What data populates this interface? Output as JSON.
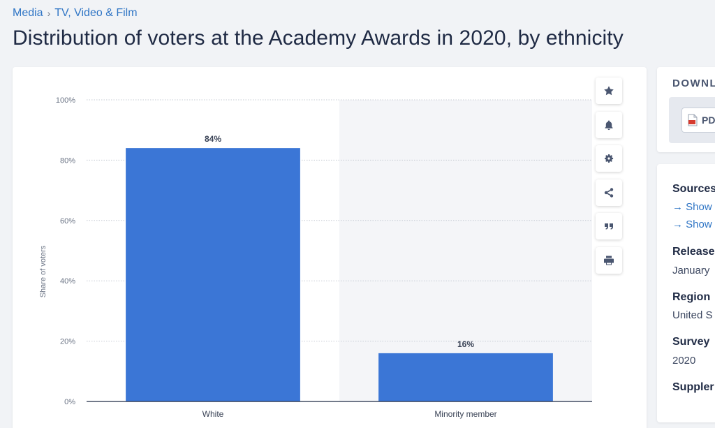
{
  "breadcrumb": {
    "items": [
      "Media",
      "TV, Video & Film"
    ],
    "separator": "›"
  },
  "page_title": "Distribution of voters at the Academy Awards in 2020, by ethnicity",
  "chart_data": {
    "type": "bar",
    "title": "",
    "xlabel": "",
    "ylabel": "Share of voters",
    "categories": [
      "White",
      "Minority member"
    ],
    "values": [
      84,
      16
    ],
    "value_labels": [
      "84%",
      "16%"
    ],
    "ylim": [
      0,
      100
    ],
    "yticks": [
      0,
      20,
      40,
      60,
      80,
      100
    ],
    "ytick_labels": [
      "0%",
      "20%",
      "40%",
      "60%",
      "80%",
      "100%"
    ],
    "grid": true,
    "bar_color": "#3b76d6"
  },
  "toolbar": {
    "items": [
      "favorite",
      "notification",
      "settings",
      "share",
      "cite",
      "print"
    ]
  },
  "download": {
    "title": "DOWNL",
    "pdf_label": "PD"
  },
  "details": {
    "sources_label": "Sources",
    "show_links": [
      "Show",
      "Show"
    ],
    "release_label": "Release",
    "release_value": "January",
    "region_label": "Region",
    "region_value": "United S",
    "survey_label": "Survey",
    "survey_value": "2020",
    "supplementary_label": "Suppler"
  },
  "colors": {
    "accent": "#2f75c5",
    "bar": "#3b76d6",
    "title": "#1f2a44"
  }
}
